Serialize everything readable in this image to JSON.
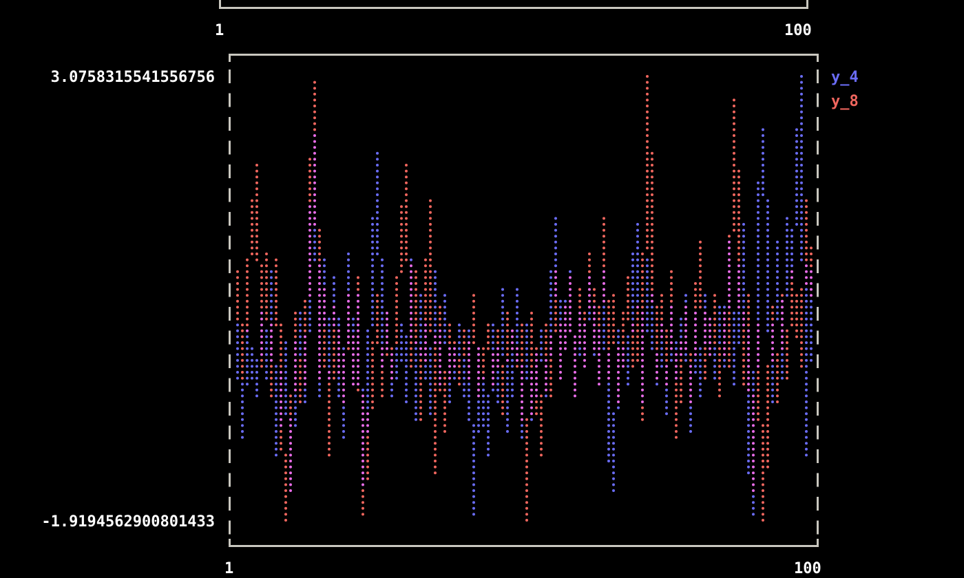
{
  "previous_plot": {
    "x_tick_labels": [
      "1",
      "100"
    ]
  },
  "chart_data": {
    "type": "line",
    "title": "",
    "xlabel": "",
    "ylabel": "",
    "xlim": [
      1,
      100
    ],
    "ylim": [
      -1.9194562900801433,
      3.0758315541556756
    ],
    "x_tick_labels": [
      "1",
      "100"
    ],
    "y_tick_labels": [
      "3.0758315541556756",
      "-1.9194562900801433"
    ],
    "legend_position": "top-right",
    "grid": false,
    "overlap_color": "#e86ce8",
    "series": [
      {
        "name": "y_4",
        "color": "#6a6cf6",
        "values": [
          0.3,
          -1.0,
          0.2,
          -0.5,
          0.4,
          -0.3,
          0.9,
          -1.2,
          0.1,
          -1.6,
          -0.2,
          0.4,
          -0.6,
          2.4,
          -0.5,
          1.0,
          -0.3,
          0.8,
          -1.0,
          1.1,
          -0.4,
          0.6,
          -1.5,
          0.9,
          2.2,
          -0.2,
          0.4,
          -0.5,
          0.3,
          -0.6,
          1.0,
          -0.8,
          0.6,
          -0.7,
          0.9,
          -0.4,
          0.6,
          -0.6,
          0.3,
          -0.5,
          0.2,
          -1.88,
          0.0,
          -1.2,
          0.3,
          -0.6,
          0.7,
          -0.9,
          0.7,
          -1.0,
          0.3,
          -0.8,
          0.2,
          -0.5,
          0.4,
          1.5,
          -0.3,
          0.9,
          -0.5,
          0.4,
          -0.2,
          0.8,
          -0.4,
          0.9,
          -1.0,
          -1.61,
          0.2,
          -0.4,
          0.8,
          1.4,
          -0.6,
          1.0,
          -0.4,
          0.3,
          -0.7,
          0.5,
          -0.3,
          0.6,
          -0.9,
          0.4,
          -0.5,
          0.6,
          -0.3,
          0.5,
          -0.2,
          1.2,
          -0.4,
          1.4,
          -1.0,
          -1.88,
          1.4,
          2.5,
          -0.6,
          1.2,
          -0.3,
          1.5,
          0.8,
          3.05,
          -1.2,
          0.9
        ]
      },
      {
        "name": "y_8",
        "color": "#f0665e",
        "values": [
          0.9,
          -0.3,
          0.7,
          2.1,
          -0.2,
          1.1,
          -0.5,
          1.0,
          -1.92,
          -1.3,
          0.4,
          -0.6,
          -0.2,
          3.0,
          -0.3,
          0.7,
          -1.2,
          0.5,
          -0.6,
          0.6,
          -0.4,
          0.8,
          -1.84,
          -0.3,
          0.6,
          -0.5,
          0.4,
          -0.3,
          1.2,
          2.05,
          -0.2,
          0.9,
          -0.8,
          1.7,
          -1.38,
          0.5,
          -0.9,
          0.3,
          -0.4,
          0.2,
          -0.3,
          0.6,
          -0.5,
          0.3,
          -0.4,
          0.2,
          -0.7,
          0.4,
          -0.2,
          0.3,
          -1.9,
          0.4,
          -1.2,
          0.3,
          -0.5,
          0.9,
          -0.3,
          0.8,
          -0.5,
          0.7,
          -0.2,
          1.1,
          -0.4,
          1.5,
          -0.3,
          0.6,
          -0.6,
          0.8,
          -0.2,
          0.5,
          -0.8,
          3.08,
          -0.3,
          0.6,
          -0.4,
          0.9,
          -1.0,
          0.5,
          -0.6,
          0.4,
          1.2,
          -0.3,
          0.6,
          -0.5,
          0.4,
          -0.2,
          2.8,
          -0.4,
          0.6,
          -1.6,
          0.3,
          -1.92,
          0.5,
          -0.6,
          0.6,
          -0.3,
          0.9,
          -0.2,
          1.7,
          0.6
        ]
      }
    ]
  }
}
